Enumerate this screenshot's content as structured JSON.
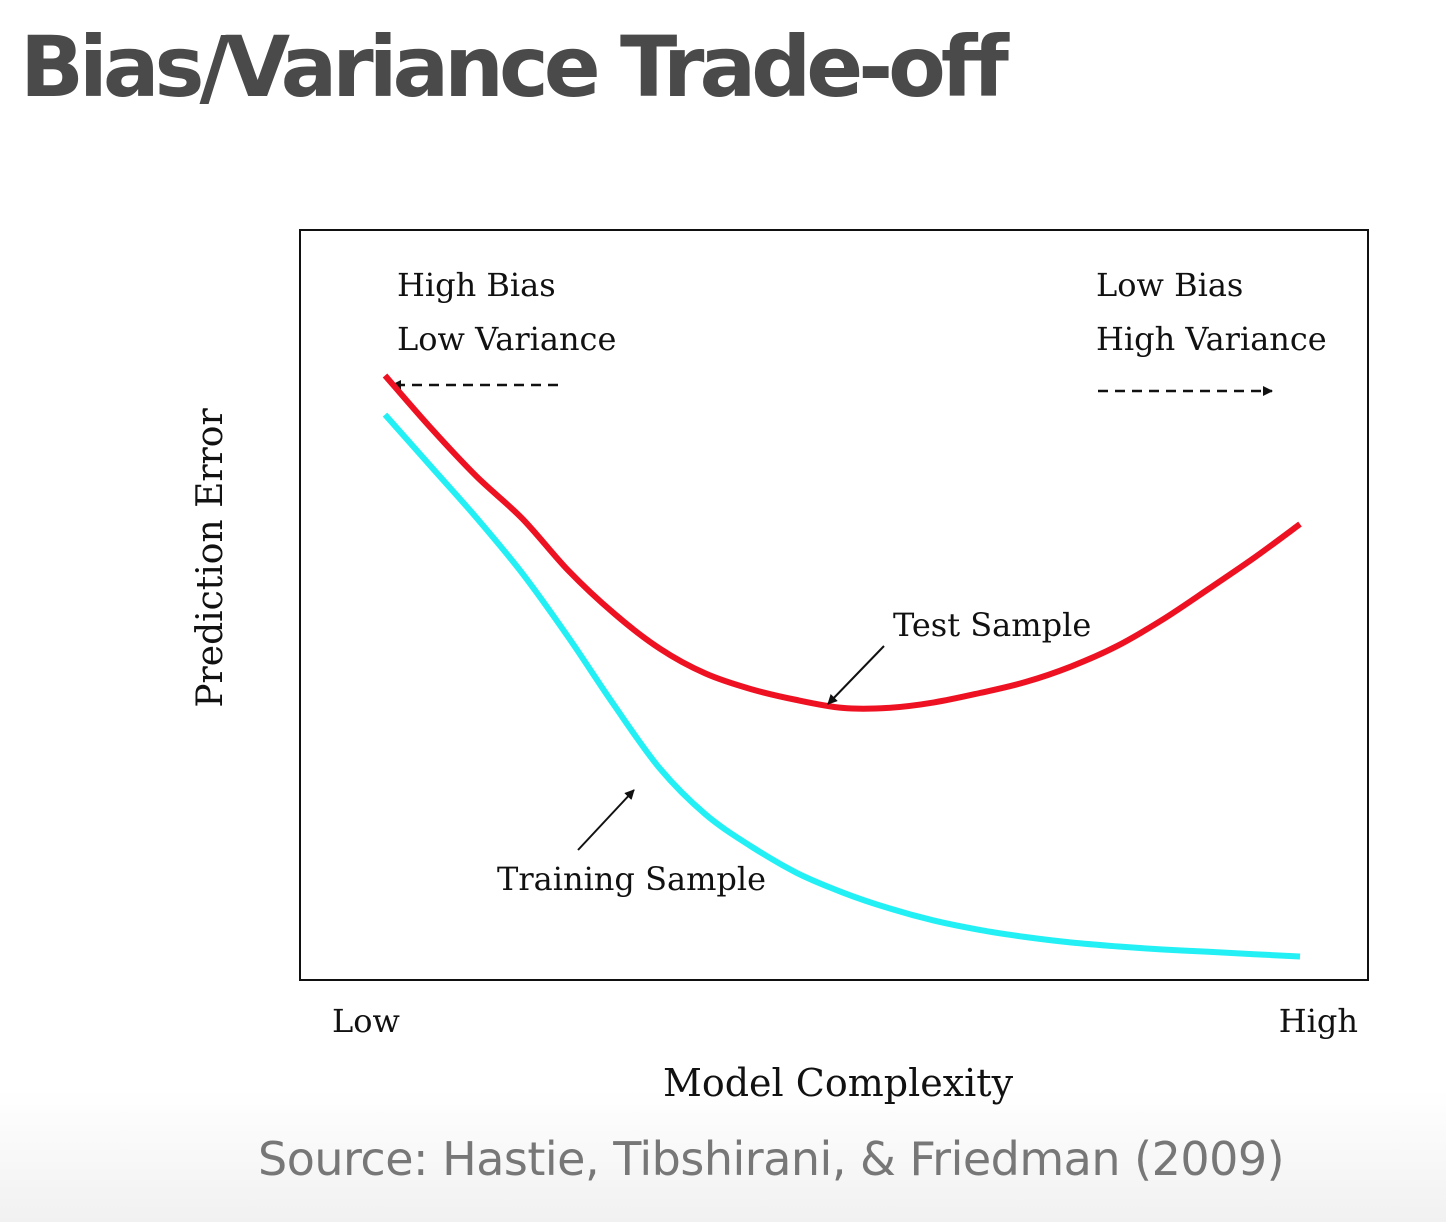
{
  "slide": {
    "title": "Bias/Variance Trade-off",
    "source": "Source: Hastie, Tibshirani, & Friedman (2009)"
  },
  "chart_data": {
    "type": "line",
    "xlabel": "Model Complexity",
    "ylabel": "Prediction Error",
    "x_tick_labels": [
      "Low",
      "High"
    ],
    "grid": false,
    "region_labels": {
      "left": [
        "High Bias",
        "Low Variance"
      ],
      "right": [
        "Low Bias",
        "High Variance"
      ]
    },
    "series": [
      {
        "name": "Test Sample",
        "color": "#ee1122",
        "x": [
          0.0,
          0.05,
          0.1,
          0.15,
          0.2,
          0.25,
          0.3,
          0.35,
          0.4,
          0.45,
          0.5,
          0.55,
          0.6,
          0.65,
          0.7,
          0.75,
          0.8,
          0.85,
          0.9,
          0.95,
          1.0
        ],
        "y": [
          0.75,
          0.683,
          0.621,
          0.567,
          0.501,
          0.446,
          0.401,
          0.369,
          0.349,
          0.335,
          0.325,
          0.325,
          0.332,
          0.344,
          0.358,
          0.378,
          0.404,
          0.438,
          0.477,
          0.517,
          0.56
        ]
      },
      {
        "name": "Training Sample",
        "color": "#22f0f5",
        "x": [
          0.0,
          0.05,
          0.1,
          0.15,
          0.2,
          0.25,
          0.3,
          0.35,
          0.4,
          0.45,
          0.5,
          0.55,
          0.6,
          0.65,
          0.7,
          0.75,
          0.8,
          0.85,
          0.9,
          0.95,
          1.0
        ],
        "y": [
          0.7,
          0.634,
          0.568,
          0.497,
          0.416,
          0.329,
          0.248,
          0.189,
          0.148,
          0.114,
          0.089,
          0.069,
          0.053,
          0.041,
          0.032,
          0.025,
          0.02,
          0.016,
          0.013,
          0.01,
          0.007
        ]
      }
    ]
  }
}
